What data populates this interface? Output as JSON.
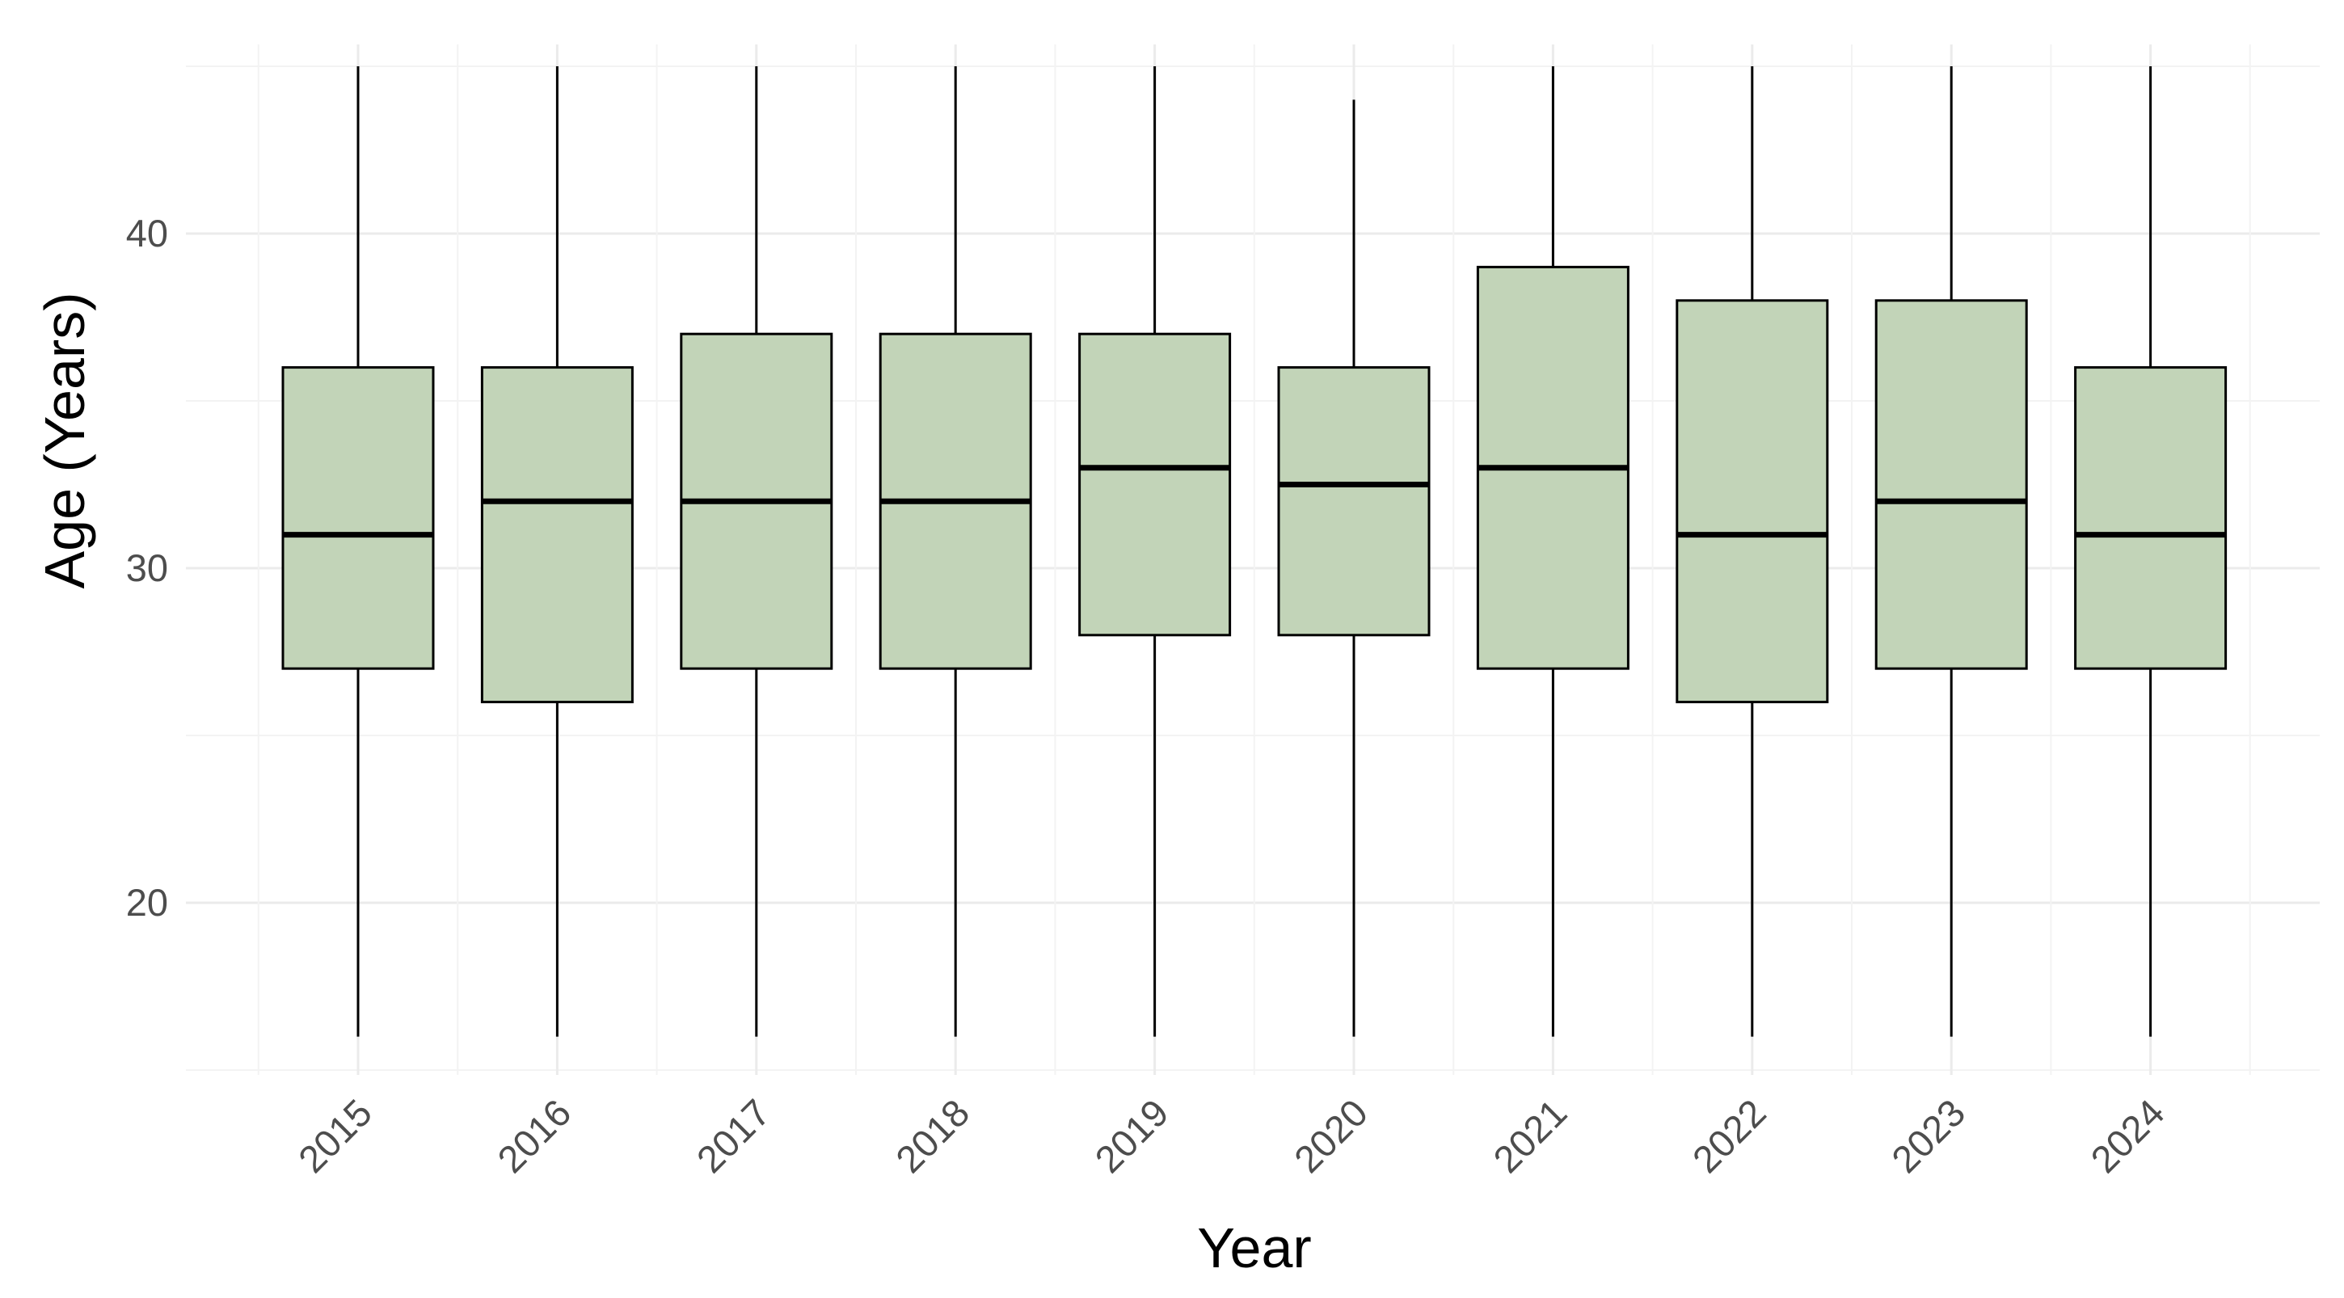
{
  "chart_data": {
    "type": "boxplot",
    "title": "",
    "xlabel": "Year",
    "ylabel": "Age (Years)",
    "ylim": [
      15,
      45
    ],
    "y_ticks": [
      20,
      30,
      40
    ],
    "grid": true,
    "box_fill": "#c2d4b8",
    "categories": [
      "2015",
      "2016",
      "2017",
      "2018",
      "2019",
      "2020",
      "2021",
      "2022",
      "2023",
      "2024"
    ],
    "boxes": [
      {
        "year": "2015",
        "min": 16,
        "q1": 27,
        "median": 31,
        "q3": 36,
        "max": 45
      },
      {
        "year": "2016",
        "min": 16,
        "q1": 26,
        "median": 32,
        "q3": 36,
        "max": 45
      },
      {
        "year": "2017",
        "min": 16,
        "q1": 27,
        "median": 32,
        "q3": 37,
        "max": 45
      },
      {
        "year": "2018",
        "min": 16,
        "q1": 27,
        "median": 32,
        "q3": 37,
        "max": 45
      },
      {
        "year": "2019",
        "min": 16,
        "q1": 28,
        "median": 33,
        "q3": 37,
        "max": 45
      },
      {
        "year": "2020",
        "min": 16,
        "q1": 28,
        "median": 32.5,
        "q3": 36,
        "max": 44
      },
      {
        "year": "2021",
        "min": 16,
        "q1": 27,
        "median": 33,
        "q3": 39,
        "max": 45
      },
      {
        "year": "2022",
        "min": 16,
        "q1": 26,
        "median": 31,
        "q3": 38,
        "max": 45
      },
      {
        "year": "2023",
        "min": 16,
        "q1": 27,
        "median": 32,
        "q3": 38,
        "max": 45
      },
      {
        "year": "2024",
        "min": 16,
        "q1": 27,
        "median": 31,
        "q3": 36,
        "max": 45
      }
    ]
  }
}
